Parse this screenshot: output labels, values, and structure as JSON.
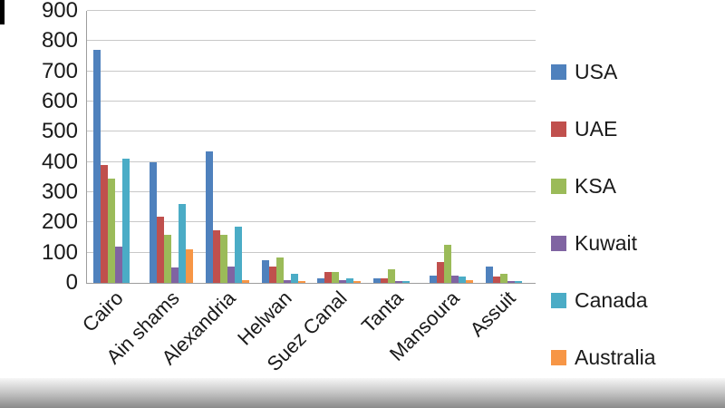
{
  "chart_data": {
    "type": "bar",
    "title": "",
    "xlabel": "",
    "ylabel": "",
    "ylim": [
      0,
      900
    ],
    "ytick_step": 100,
    "yticks": [
      0,
      100,
      200,
      300,
      400,
      500,
      600,
      700,
      800,
      900
    ],
    "grid": true,
    "legend_position": "right",
    "categories": [
      "Cairo",
      "Ain shams",
      "Alexandria",
      "Helwan",
      "Suez Canal",
      "Tanta",
      "Mansoura",
      "Assuit"
    ],
    "series": [
      {
        "name": "USA",
        "color": "#4F81BD",
        "values": [
          770,
          400,
          435,
          75,
          15,
          15,
          25,
          55
        ]
      },
      {
        "name": "UAE",
        "color": "#C0504D",
        "values": [
          390,
          220,
          175,
          55,
          35,
          15,
          70,
          20
        ]
      },
      {
        "name": "KSA",
        "color": "#9BBB59",
        "values": [
          345,
          160,
          160,
          85,
          35,
          45,
          125,
          30
        ]
      },
      {
        "name": "Kuwait",
        "color": "#8064A2",
        "values": [
          120,
          50,
          55,
          10,
          10,
          5,
          25,
          5
        ]
      },
      {
        "name": "Canada",
        "color": "#4BACC6",
        "values": [
          410,
          260,
          185,
          30,
          15,
          5,
          20,
          5
        ]
      },
      {
        "name": "Australia",
        "color": "#F79646",
        "values": [
          0,
          110,
          10,
          5,
          5,
          0,
          10,
          0
        ]
      }
    ]
  }
}
